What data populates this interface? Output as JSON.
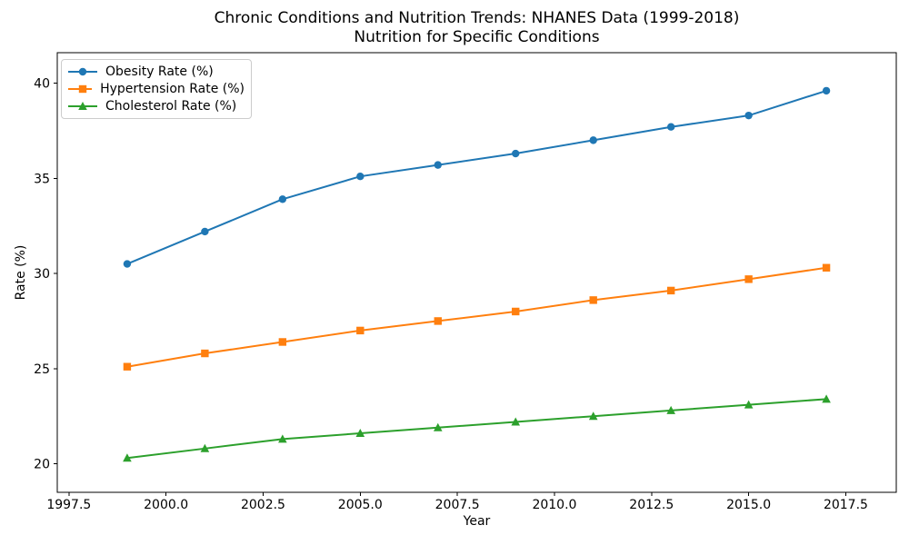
{
  "chart_data": {
    "type": "line",
    "title": "Chronic Conditions and Nutrition Trends: NHANES Data (1999-2018)",
    "subtitle": "Nutrition for Specific Conditions",
    "xlabel": "Year",
    "ylabel": "Rate (%)",
    "x": [
      1999,
      2001,
      2003,
      2005,
      2007,
      2009,
      2011,
      2013,
      2015,
      2017
    ],
    "series": [
      {
        "name": "Obesity Rate (%)",
        "slug": "obesity",
        "color": "#1f77b4",
        "marker": "circle",
        "values": [
          30.5,
          32.2,
          33.9,
          35.1,
          35.7,
          36.3,
          37.0,
          37.7,
          38.3,
          39.6
        ]
      },
      {
        "name": "Hypertension Rate (%)",
        "slug": "hypertension",
        "color": "#ff7f0e",
        "marker": "square",
        "values": [
          25.1,
          25.8,
          26.4,
          27.0,
          27.5,
          28.0,
          28.6,
          29.1,
          29.7,
          30.3
        ]
      },
      {
        "name": "Cholesterol Rate (%)",
        "slug": "cholesterol",
        "color": "#2ca02c",
        "marker": "triangle-up",
        "values": [
          20.3,
          20.8,
          21.3,
          21.6,
          21.9,
          22.2,
          22.5,
          22.8,
          23.1,
          23.4
        ]
      }
    ],
    "xlim": [
      1997.2,
      2018.8
    ],
    "ylim": [
      18.5,
      41.6
    ],
    "xticks": {
      "values": [
        1997.5,
        2000.0,
        2002.5,
        2005.0,
        2007.5,
        2010.0,
        2012.5,
        2015.0,
        2017.5
      ],
      "labels": [
        "1997.5",
        "2000.0",
        "2002.5",
        "2005.0",
        "2007.5",
        "2010.0",
        "2012.5",
        "2015.0",
        "2017.5"
      ]
    },
    "yticks": {
      "values": [
        20,
        25,
        30,
        35,
        40
      ],
      "labels": [
        "20",
        "25",
        "30",
        "35",
        "40"
      ]
    },
    "legend_position": "upper left",
    "grid": false,
    "colors": {
      "background": "#ffffff",
      "axis": "#000000",
      "legend_border": "#cccccc"
    }
  }
}
